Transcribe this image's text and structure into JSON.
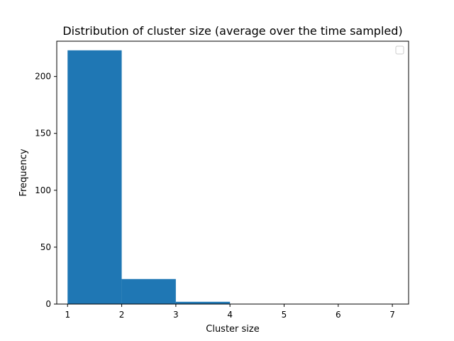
{
  "chart_data": {
    "type": "bar",
    "title": "Distribution of cluster size (average over the time sampled)",
    "xlabel": "Cluster size",
    "ylabel": "Frequency",
    "xlim": [
      0.8,
      7.3
    ],
    "ylim": [
      0,
      231
    ],
    "xticks": [
      1,
      2,
      3,
      4,
      5,
      6,
      7
    ],
    "yticks": [
      0,
      50,
      100,
      150,
      200
    ],
    "bins": [
      {
        "start": 1,
        "end": 2,
        "value": 223
      },
      {
        "start": 2,
        "end": 3,
        "value": 22
      },
      {
        "start": 3,
        "end": 4,
        "value": 2
      }
    ],
    "bar_color": "#1f77b4",
    "legend": {
      "position": "top-right",
      "entries": []
    },
    "grid": false
  }
}
